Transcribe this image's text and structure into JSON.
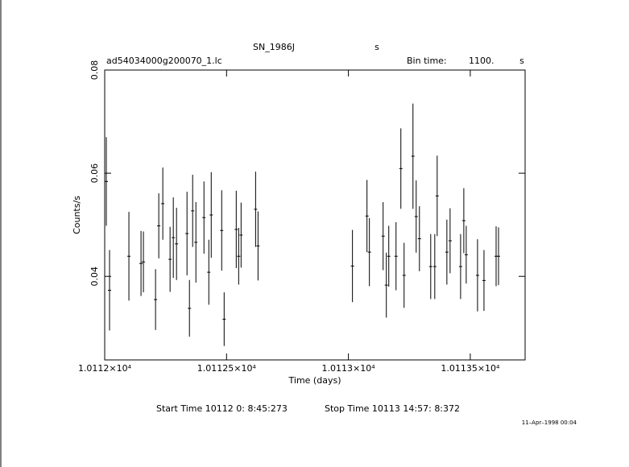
{
  "chart_data": {
    "type": "errorbar",
    "title": "SN_1986J",
    "title_unit": "s",
    "file_name": "ad54034000g200070_1.lc",
    "bin_time_label": "Bin time:",
    "bin_time": "1100.",
    "bin_time_unit": "s",
    "x_label": "Time (days)",
    "y_label": "Counts/s",
    "start_time": "Start Time 10112  0: 8:45:273",
    "stop_time": "Stop Time 10113 14:57: 8:372",
    "date_stamp": "11–Apr–1998 00:04",
    "xlim": [
      10112,
      10113.725
    ],
    "ylim": [
      0.0238,
      0.08
    ],
    "xticks": [
      {
        "value": 10112,
        "label": "1.0112×10⁴"
      },
      {
        "value": 10112.5,
        "label": "1.01125×10⁴"
      },
      {
        "value": 10113,
        "label": "1.0113×10⁴"
      },
      {
        "value": 10113.5,
        "label": "1.01135×10⁴"
      }
    ],
    "yticks": [
      0.04,
      0.06,
      0.08
    ],
    "color": "#000000",
    "series": [
      {
        "name": "Counts/s",
        "x": [
          10112.0066,
          10112.0199,
          10112.0993,
          10112.149,
          10112.1589,
          10112.2086,
          10112.2219,
          10112.2384,
          10112.2682,
          10112.2815,
          10112.2947,
          10112.3377,
          10112.3477,
          10112.3609,
          10112.3742,
          10112.4073,
          10112.4272,
          10112.4371,
          10112.4801,
          10112.4901,
          10112.5397,
          10112.5497,
          10112.5596,
          10112.6192,
          10112.6291,
          10113.0166,
          10113.0762,
          10113.0861,
          10113.1424,
          10113.1556,
          10113.1656,
          10113.1954,
          10113.2152,
          10113.2285,
          10113.2649,
          10113.2781,
          10113.2914,
          10113.3377,
          10113.3543,
          10113.3642,
          10113.404,
          10113.4172,
          10113.4603,
          10113.4735,
          10113.4834,
          10113.5298,
          10113.5563,
          10113.606,
          10113.6159
        ],
        "values": [
          0.0584,
          0.0373,
          0.0439,
          0.0425,
          0.0428,
          0.0355,
          0.0498,
          0.0541,
          0.0433,
          0.0475,
          0.0463,
          0.0483,
          0.0338,
          0.0527,
          0.0466,
          0.0514,
          0.0408,
          0.0519,
          0.0489,
          0.0317,
          0.0491,
          0.0439,
          0.048,
          0.053,
          0.0459,
          0.042,
          0.0517,
          0.0447,
          0.0478,
          0.0383,
          0.0439,
          0.0439,
          0.0609,
          0.0402,
          0.0633,
          0.0516,
          0.0473,
          0.0419,
          0.0419,
          0.0556,
          0.0447,
          0.0469,
          0.0419,
          0.0508,
          0.0442,
          0.0402,
          0.0392,
          0.0439,
          0.0439
        ],
        "errors": [
          0.0086,
          0.0078,
          0.0086,
          0.0063,
          0.0059,
          0.0059,
          0.0063,
          0.007,
          0.0063,
          0.0078,
          0.007,
          0.0081,
          0.0055,
          0.007,
          0.0078,
          0.007,
          0.0063,
          0.0083,
          0.0078,
          0.0052,
          0.0075,
          0.0055,
          0.0063,
          0.0073,
          0.0067,
          0.007,
          0.007,
          0.0066,
          0.0066,
          0.0063,
          0.0059,
          0.0066,
          0.0078,
          0.0063,
          0.0102,
          0.007,
          0.0063,
          0.0063,
          0.0063,
          0.0078,
          0.0063,
          0.0063,
          0.0063,
          0.0063,
          0.0056,
          0.007,
          0.0059,
          0.0058,
          0.0056
        ]
      }
    ]
  }
}
